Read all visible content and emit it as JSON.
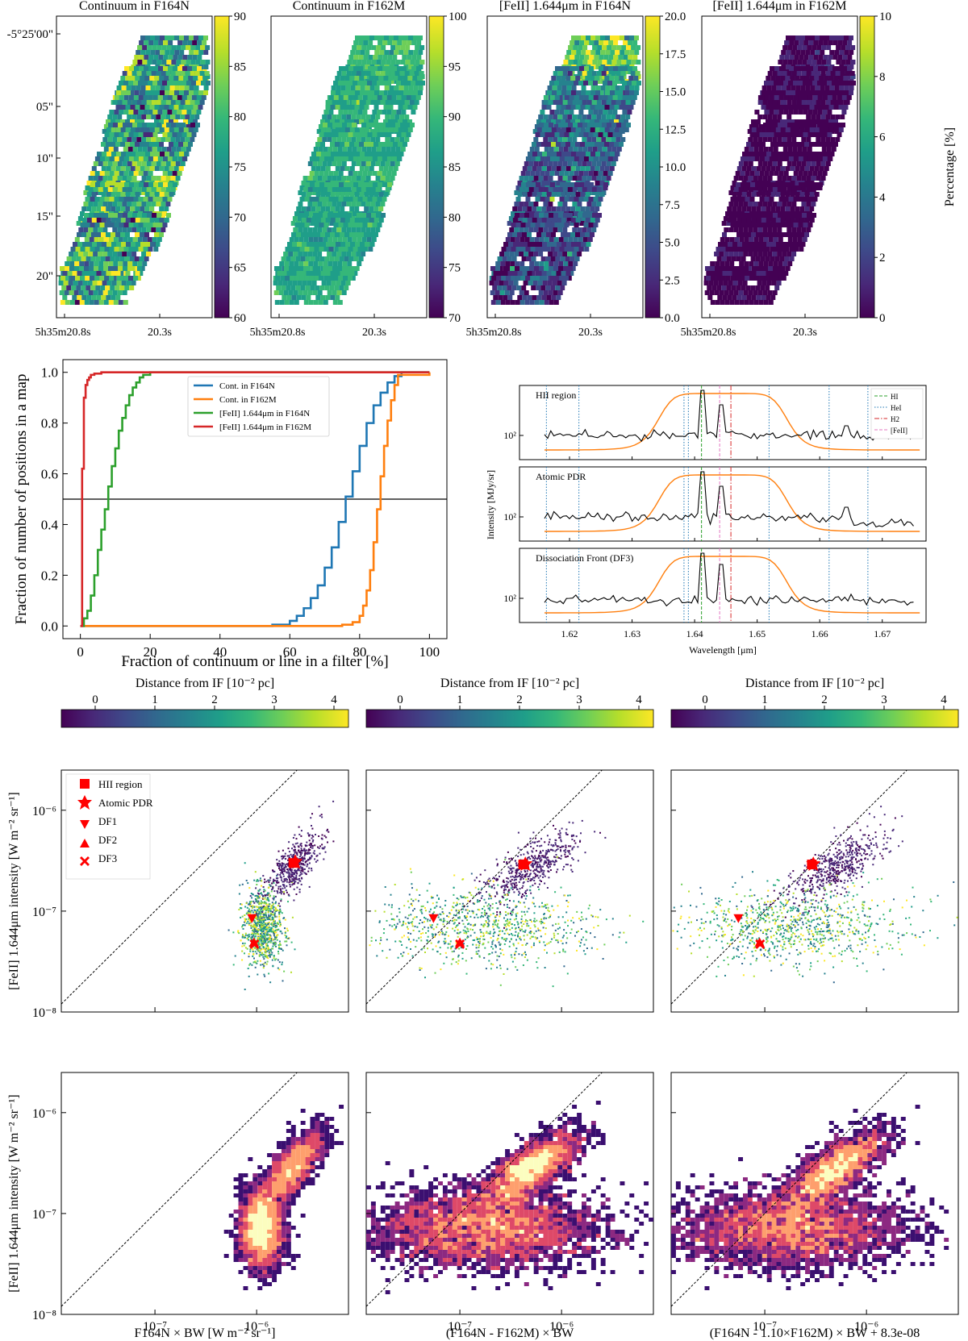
{
  "chart_data": [
    {
      "type": "heatmap",
      "title": "Continuum in F164N",
      "colorbar": {
        "min": 60,
        "max": 90,
        "ticks": [
          "90",
          "85",
          "80",
          "75",
          "70",
          "65",
          "60"
        ]
      },
      "yticks": [
        "-5°25'00\"",
        "05\"",
        "10\"",
        "15\"",
        "20\""
      ],
      "xticks": [
        "5h35m20.8s",
        "20.3s"
      ]
    },
    {
      "type": "heatmap",
      "title": "Continuum in F162M",
      "colorbar": {
        "min": 70,
        "max": 100,
        "ticks": [
          "100",
          "95",
          "90",
          "85",
          "80",
          "75",
          "70"
        ]
      },
      "xticks": [
        "5h35m20.8s",
        "20.3s"
      ]
    },
    {
      "type": "heatmap",
      "title": "[FeII] 1.644μm in F164N",
      "colorbar": {
        "min": 0,
        "max": 20,
        "ticks": [
          "20.0",
          "17.5",
          "15.0",
          "12.5",
          "10.0",
          "7.5",
          "5.0",
          "2.5",
          "0.0"
        ]
      },
      "xticks": [
        "5h35m20.8s",
        "20.3s"
      ]
    },
    {
      "type": "heatmap",
      "title": "[FeII] 1.644μm in F162M",
      "colorbar": {
        "min": 0,
        "max": 10,
        "ticks": [
          "10",
          "8",
          "6",
          "4",
          "2",
          "0"
        ],
        "label": "Percentage [%]"
      },
      "xticks": [
        "5h35m20.8s",
        "20.3s"
      ]
    },
    {
      "type": "line",
      "title": "",
      "xlabel": "Fraction of continuum or line in a filter [%]",
      "ylabel": "Fraction of number of positions in a map",
      "xlim": [
        -5,
        105
      ],
      "ylim": [
        -0.05,
        1.05
      ],
      "xticks": [
        "0",
        "20",
        "40",
        "60",
        "80",
        "100"
      ],
      "yticks": [
        "0.0",
        "0.2",
        "0.4",
        "0.6",
        "0.8",
        "1.0"
      ],
      "hline": 0.5,
      "series": [
        {
          "name": "Cont. in F164N",
          "color": "#1f77b4",
          "x": [
            0,
            50,
            55,
            60,
            62,
            64,
            66,
            68,
            70,
            72,
            74,
            76,
            78,
            80,
            82,
            84,
            86,
            88,
            90,
            92,
            100
          ],
          "y": [
            0,
            0.0,
            0.005,
            0.02,
            0.04,
            0.07,
            0.11,
            0.16,
            0.23,
            0.31,
            0.41,
            0.51,
            0.61,
            0.71,
            0.8,
            0.87,
            0.92,
            0.96,
            0.985,
            1.0,
            1.0
          ]
        },
        {
          "name": "Cont. in F162M",
          "color": "#ff7f0e",
          "x": [
            0,
            70,
            75,
            78,
            80,
            81,
            82,
            83,
            84,
            85,
            86,
            87,
            88,
            89,
            90,
            91,
            100
          ],
          "y": [
            0,
            0.0,
            0.005,
            0.015,
            0.04,
            0.08,
            0.14,
            0.22,
            0.33,
            0.46,
            0.59,
            0.71,
            0.81,
            0.89,
            0.95,
            0.99,
            1.0
          ]
        },
        {
          "name": "[FeII] 1.644μm in F164N",
          "color": "#2ca02c",
          "x": [
            0,
            1,
            2,
            3,
            4,
            5,
            6,
            7,
            8,
            9,
            10,
            11,
            12,
            13,
            14,
            15,
            16,
            17,
            18,
            20,
            100
          ],
          "y": [
            0,
            0.03,
            0.06,
            0.12,
            0.2,
            0.3,
            0.38,
            0.46,
            0.55,
            0.63,
            0.7,
            0.77,
            0.82,
            0.87,
            0.91,
            0.94,
            0.96,
            0.98,
            0.99,
            1.0,
            1.0
          ]
        },
        {
          "name": "[FeII] 1.644μm in F162M",
          "color": "#d62728",
          "x": [
            0,
            0.5,
            1,
            1.5,
            2,
            2.5,
            3,
            4,
            6,
            100
          ],
          "y": [
            0,
            0.62,
            0.9,
            0.95,
            0.97,
            0.98,
            0.99,
            0.995,
            1.0,
            1.0
          ]
        }
      ]
    },
    {
      "type": "line",
      "panels": [
        "HII region",
        "Atomic PDR",
        "Dissociation Front (DF3)"
      ],
      "xlabel": "Wavelength [μm]",
      "ylabel": "Intensity [MJy/sr]",
      "xlim": [
        1.612,
        1.677
      ],
      "xticks": [
        "1.62",
        "1.63",
        "1.64",
        "1.65",
        "1.66",
        "1.67"
      ],
      "ytick": "10²",
      "legend": [
        "HI",
        "HeI",
        "H2",
        "[FeII]"
      ],
      "lines": {
        "HI": [
          1.6411
        ],
        "HeI": [
          1.6163,
          1.6215,
          1.6383,
          1.639,
          1.6519,
          1.6615,
          1.6677
        ],
        "H2": [
          1.6458
        ],
        "FeII": [
          1.644
        ]
      },
      "filter_curve": {
        "name": "F164N transmission",
        "center": 1.6445,
        "width": 0.021
      }
    },
    {
      "type": "scatter",
      "ylabel": "[FeII] 1.644μm intensity [W m⁻² sr⁻¹]",
      "colorbar": {
        "label": "Distance from IF [10⁻² pc]",
        "ticks": [
          "0",
          "1",
          "2",
          "3",
          "4"
        ]
      },
      "xlog": [
        1.2e-08,
        8e-06
      ],
      "ylog": [
        1e-08,
        2.5e-06
      ],
      "panels": [
        {
          "xlabel": "F164N × BW [W m⁻² sr⁻¹]",
          "markers": [
            {
              "name": "HII region",
              "shape": "square",
              "x": 2.3e-06,
              "y": 3e-07
            },
            {
              "name": "Atomic PDR",
              "shape": "star",
              "x": 2.4e-06,
              "y": 3.1e-07
            },
            {
              "name": "DF1",
              "shape": "triangle-down",
              "x": 9e-07,
              "y": 8.5e-08
            },
            {
              "name": "DF2",
              "shape": "triangle-up",
              "x": 9.4e-07,
              "y": 4.9e-08
            },
            {
              "name": "DF3",
              "shape": "x",
              "x": 9.5e-07,
              "y": 4.7e-08
            }
          ]
        },
        {
          "xlabel": "(F164N - F162M) × BW",
          "markers": [
            {
              "name": "HII region",
              "shape": "square",
              "x": 4.2e-07,
              "y": 2.9e-07
            },
            {
              "name": "Atomic PDR",
              "shape": "star",
              "x": 4.4e-07,
              "y": 2.95e-07
            },
            {
              "name": "DF1",
              "shape": "triangle-down",
              "x": 5.5e-08,
              "y": 8.5e-08
            },
            {
              "name": "DF2",
              "shape": "triangle-up",
              "x": 1e-07,
              "y": 4.9e-08
            },
            {
              "name": "DF3",
              "shape": "x",
              "x": 1e-07,
              "y": 4.7e-08
            }
          ]
        },
        {
          "xlabel": "(F164N - 1.10×F162M) × BW + 8.3e-08",
          "markers": [
            {
              "name": "HII region",
              "shape": "square",
              "x": 2.9e-07,
              "y": 2.9e-07
            },
            {
              "name": "Atomic PDR",
              "shape": "star",
              "x": 3e-07,
              "y": 2.95e-07
            },
            {
              "name": "DF1",
              "shape": "triangle-down",
              "x": 5.5e-08,
              "y": 8.5e-08
            },
            {
              "name": "DF2",
              "shape": "triangle-up",
              "x": 8.9e-08,
              "y": 4.9e-08
            },
            {
              "name": "DF3",
              "shape": "x",
              "x": 9e-08,
              "y": 4.7e-08
            }
          ]
        }
      ],
      "legend": [
        "HII region",
        "Atomic PDR",
        "DF1",
        "DF2",
        "DF3"
      ]
    },
    {
      "type": "heatmap",
      "description_kind": "2D histogram",
      "ylabel": "[FeII] 1.644μm intensity [W m⁻² sr⁻¹]",
      "xlabels": [
        "F164N × BW [W m⁻² sr⁻¹]",
        "(F164N - F162M) × BW",
        "(F164N - 1.10×F162M) × BW + 8.3e-08"
      ],
      "xtick_labels": [
        "10⁻⁷",
        "10⁻⁶"
      ],
      "ytick_labels": [
        "10⁻⁸",
        "10⁻⁷",
        "10⁻⁶"
      ]
    }
  ],
  "labels": {
    "map_titles": [
      "Continuum in F164N",
      "Continuum in F162M",
      "[FeII] 1.644μm in F164N",
      "[FeII] 1.644μm in F162M"
    ],
    "percentage": "Percentage [%]",
    "dec_ticks": [
      "-5°25'00\"",
      "05\"",
      "10\"",
      "15\"",
      "20\""
    ],
    "ra_main": "5h35m20.8s",
    "ra_sec": "20.3s",
    "cdf_xlabel": "Fraction of continuum or line in a filter [%]",
    "cdf_ylabel": "Fraction of number of positions in a map",
    "spec_xlabel": "Wavelength [μm]",
    "spec_ylabel": "Intensity [MJy/sr]",
    "spec_panels": [
      "HII region",
      "Atomic PDR",
      "Dissociation Front (DF3)"
    ],
    "spec_legend": [
      "HI",
      "HeI",
      "H2",
      "[FeII]"
    ],
    "spec_xticks": [
      "1.62",
      "1.63",
      "1.64",
      "1.65",
      "1.66",
      "1.67"
    ],
    "spec_ytick": "10²",
    "dist_label": "Distance from IF [10⁻² pc]",
    "dist_ticks": [
      "0",
      "1",
      "2",
      "3",
      "4"
    ],
    "feii_ylabel": "[FeII] 1.644μm intensity [W m⁻² sr⁻¹]",
    "x_labels": [
      "F164N × BW [W m⁻² sr⁻¹]",
      "(F164N - F162M) × BW",
      "(F164N - 1.10×F162M) × BW + 8.3e-08"
    ],
    "log_ticks_x": [
      "10⁻⁷",
      "10⁻⁶"
    ],
    "log_ticks_y": [
      "10⁻⁸",
      "10⁻⁷",
      "10⁻⁶"
    ],
    "marker_legend": [
      "HII region",
      "Atomic PDR",
      "DF1",
      "DF2",
      "DF3"
    ]
  },
  "colors": {
    "viridis": [
      "#440154",
      "#482878",
      "#3e4989",
      "#31688e",
      "#26828e",
      "#1f9e89",
      "#35b779",
      "#6ece58",
      "#b5de2b",
      "#fde725"
    ],
    "hist": [
      "#0b0724",
      "#3b0f70",
      "#8c2981",
      "#de4968",
      "#fe9f6d",
      "#fcfdbf"
    ],
    "red": "#ff0000"
  }
}
